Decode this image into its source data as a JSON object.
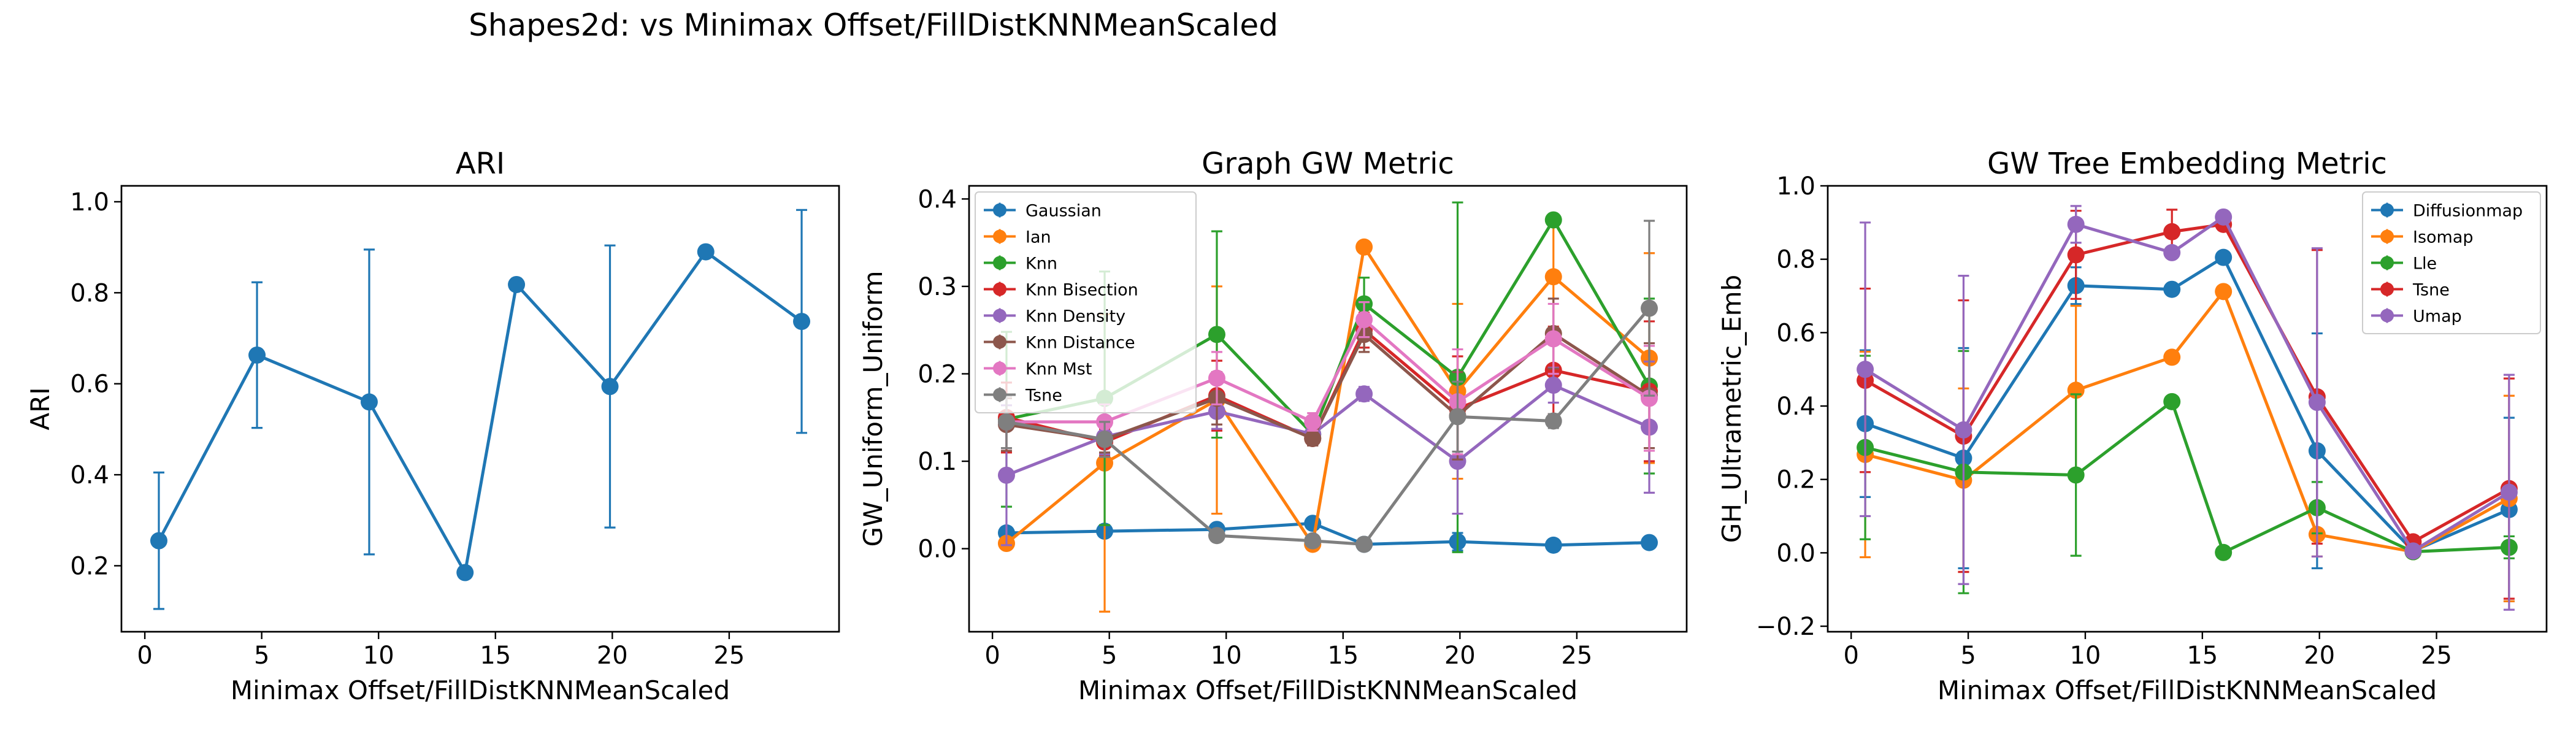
{
  "figure": {
    "suptitle": "Shapes2d: vs Minimax Offset/FillDistKNNMeanScaled"
  },
  "colors": {
    "tab_blue": "#1f77b4",
    "tab_orange": "#ff7f0e",
    "tab_green": "#2ca02c",
    "tab_red": "#d62728",
    "tab_purple": "#9467bd",
    "tab_brown": "#8c564b",
    "tab_pink": "#e377c2",
    "tab_gray": "#7f7f7f"
  },
  "chart_data": [
    {
      "type": "line",
      "title": "ARI",
      "xlabel": "Minimax Offset/FillDistKNNMeanScaled",
      "ylabel": "ARI",
      "xlim": [
        -1.0,
        29.7
      ],
      "ylim": [
        0.055,
        1.035
      ],
      "xticks": [
        0,
        5,
        10,
        15,
        20,
        25
      ],
      "xtick_labels": [
        "0",
        "5",
        "10",
        "15",
        "20",
        "25"
      ],
      "yticks": [
        0.2,
        0.4,
        0.6,
        0.8,
        1.0
      ],
      "ytick_labels": [
        "0.2",
        "0.4",
        "0.6",
        "0.8",
        "1.0"
      ],
      "grid": false,
      "legend": null,
      "x": [
        0.6,
        4.8,
        9.6,
        13.7,
        15.9,
        19.9,
        24.0,
        28.1
      ],
      "series": [
        {
          "color": "#1f77b4",
          "values": [
            0.255,
            0.663,
            0.56,
            0.185,
            0.818,
            0.594,
            0.89,
            0.737
          ],
          "err": [
            0.15,
            0.16,
            0.335,
            0.0,
            0.0,
            0.31,
            0.0,
            0.245
          ]
        }
      ]
    },
    {
      "type": "line",
      "title": "Graph GW Metric",
      "xlabel": "Minimax Offset/FillDistKNNMeanScaled",
      "ylabel": "GW_Uniform_Uniform",
      "xlim": [
        -1.0,
        29.7
      ],
      "ylim": [
        -0.095,
        0.415
      ],
      "xticks": [
        0,
        5,
        10,
        15,
        20,
        25
      ],
      "xtick_labels": [
        "0",
        "5",
        "10",
        "15",
        "20",
        "25"
      ],
      "yticks": [
        0.0,
        0.1,
        0.2,
        0.3,
        0.4
      ],
      "ytick_labels": [
        "0.0",
        "0.1",
        "0.2",
        "0.3",
        "0.4"
      ],
      "grid": false,
      "legend": "upper-left",
      "x": [
        0.6,
        4.8,
        9.6,
        13.7,
        15.9,
        19.9,
        24.0,
        28.1
      ],
      "series": [
        {
          "name": "Gaussian",
          "color": "#1f77b4",
          "values": [
            0.018,
            0.02,
            0.022,
            0.029,
            0.005,
            0.008,
            0.004,
            0.007
          ],
          "err": [
            0.004,
            0.004,
            0.004,
            0.004,
            0.002,
            0.01,
            0.002,
            0.003
          ]
        },
        {
          "name": "Ian",
          "color": "#ff7f0e",
          "values": [
            0.006,
            0.098,
            0.17,
            0.005,
            0.345,
            0.18,
            0.311,
            0.218
          ],
          "err": [
            0.005,
            0.17,
            0.13,
            0.003,
            0.0,
            0.1,
            0.06,
            0.12
          ]
        },
        {
          "name": "Knn",
          "color": "#2ca02c",
          "values": [
            0.148,
            0.172,
            0.245,
            0.131,
            0.28,
            0.196,
            0.376,
            0.186
          ],
          "err": [
            0.1,
            0.145,
            0.118,
            0.01,
            0.03,
            0.2,
            0.0,
            0.1
          ]
        },
        {
          "name": "Knn Bisection",
          "color": "#d62728",
          "values": [
            0.15,
            0.122,
            0.175,
            0.126,
            0.25,
            0.16,
            0.204,
            0.18
          ],
          "err": [
            0.04,
            0.015,
            0.04,
            0.008,
            0.02,
            0.06,
            0.05,
            0.08
          ]
        },
        {
          "name": "Knn Density",
          "color": "#9467bd",
          "values": [
            0.084,
            0.128,
            0.157,
            0.131,
            0.177,
            0.1,
            0.187,
            0.139
          ],
          "err": [
            0.08,
            0.02,
            0.02,
            0.008,
            0.008,
            0.06,
            0.02,
            0.075
          ]
        },
        {
          "name": "Knn Distance",
          "color": "#8c564b",
          "values": [
            0.142,
            0.125,
            0.172,
            0.126,
            0.245,
            0.152,
            0.246,
            0.175
          ],
          "err": [
            0.03,
            0.015,
            0.03,
            0.008,
            0.02,
            0.05,
            0.04,
            0.06
          ]
        },
        {
          "name": "Knn Mst",
          "color": "#e377c2",
          "values": [
            0.145,
            0.145,
            0.195,
            0.145,
            0.262,
            0.168,
            0.24,
            0.172
          ],
          "err": [
            0.03,
            0.02,
            0.03,
            0.01,
            0.02,
            0.06,
            0.04,
            0.06
          ]
        },
        {
          "name": "Tsne",
          "color": "#7f7f7f",
          "values": [
            0.145,
            0.125,
            0.015,
            0.009,
            0.005,
            0.151,
            0.146,
            0.275
          ],
          "err": [
            0.03,
            0.02,
            0.005,
            0.003,
            0.002,
            0.04,
            0.008,
            0.1
          ]
        }
      ]
    },
    {
      "type": "line",
      "title": "GW Tree Embedding Metric",
      "xlabel": "Minimax Offset/FillDistKNNMeanScaled",
      "ylabel": "GH_Ultrametric_Emb",
      "xlim": [
        -1.0,
        29.7
      ],
      "ylim": [
        -0.215,
        1.0
      ],
      "xticks": [
        0,
        5,
        10,
        15,
        20,
        25
      ],
      "xtick_labels": [
        "0",
        "5",
        "10",
        "15",
        "20",
        "25"
      ],
      "yticks": [
        -0.2,
        0.0,
        0.2,
        0.4,
        0.6,
        0.8,
        1.0
      ],
      "ytick_labels": [
        "−0.2",
        "0.0",
        "0.2",
        "0.4",
        "0.6",
        "0.8",
        "1.0"
      ],
      "grid": false,
      "legend": "upper-right",
      "x": [
        0.6,
        4.8,
        9.6,
        13.7,
        15.9,
        19.9,
        24.0,
        28.1
      ],
      "series": [
        {
          "name": "Diffusionmap",
          "color": "#1f77b4",
          "values": [
            0.352,
            0.258,
            0.728,
            0.718,
            0.805,
            0.278,
            0.005,
            0.118
          ],
          "err": [
            0.2,
            0.3,
            0.05,
            0.0,
            0.0,
            0.32,
            0.008,
            0.25
          ]
        },
        {
          "name": "Isomap",
          "color": "#ff7f0e",
          "values": [
            0.268,
            0.198,
            0.443,
            0.533,
            0.712,
            0.05,
            0.003,
            0.148
          ],
          "err": [
            0.28,
            0.25,
            0.23,
            0.0,
            0.0,
            0.06,
            0.005,
            0.28
          ]
        },
        {
          "name": "Lle",
          "color": "#2ca02c",
          "values": [
            0.287,
            0.22,
            0.212,
            0.412,
            0.001,
            0.123,
            0.003,
            0.015
          ],
          "err": [
            0.25,
            0.33,
            0.22,
            0.0,
            0.0,
            0.07,
            0.005,
            0.03
          ]
        },
        {
          "name": "Tsne",
          "color": "#d62728",
          "values": [
            0.47,
            0.318,
            0.812,
            0.875,
            0.895,
            0.425,
            0.03,
            0.175
          ],
          "err": [
            0.25,
            0.37,
            0.12,
            0.06,
            0.0,
            0.4,
            0.01,
            0.3
          ]
        },
        {
          "name": "Umap",
          "color": "#9467bd",
          "values": [
            0.5,
            0.335,
            0.895,
            0.818,
            0.915,
            0.41,
            0.005,
            0.165
          ],
          "err": [
            0.4,
            0.42,
            0.05,
            0.0,
            0.0,
            0.42,
            0.008,
            0.32
          ]
        }
      ]
    }
  ]
}
